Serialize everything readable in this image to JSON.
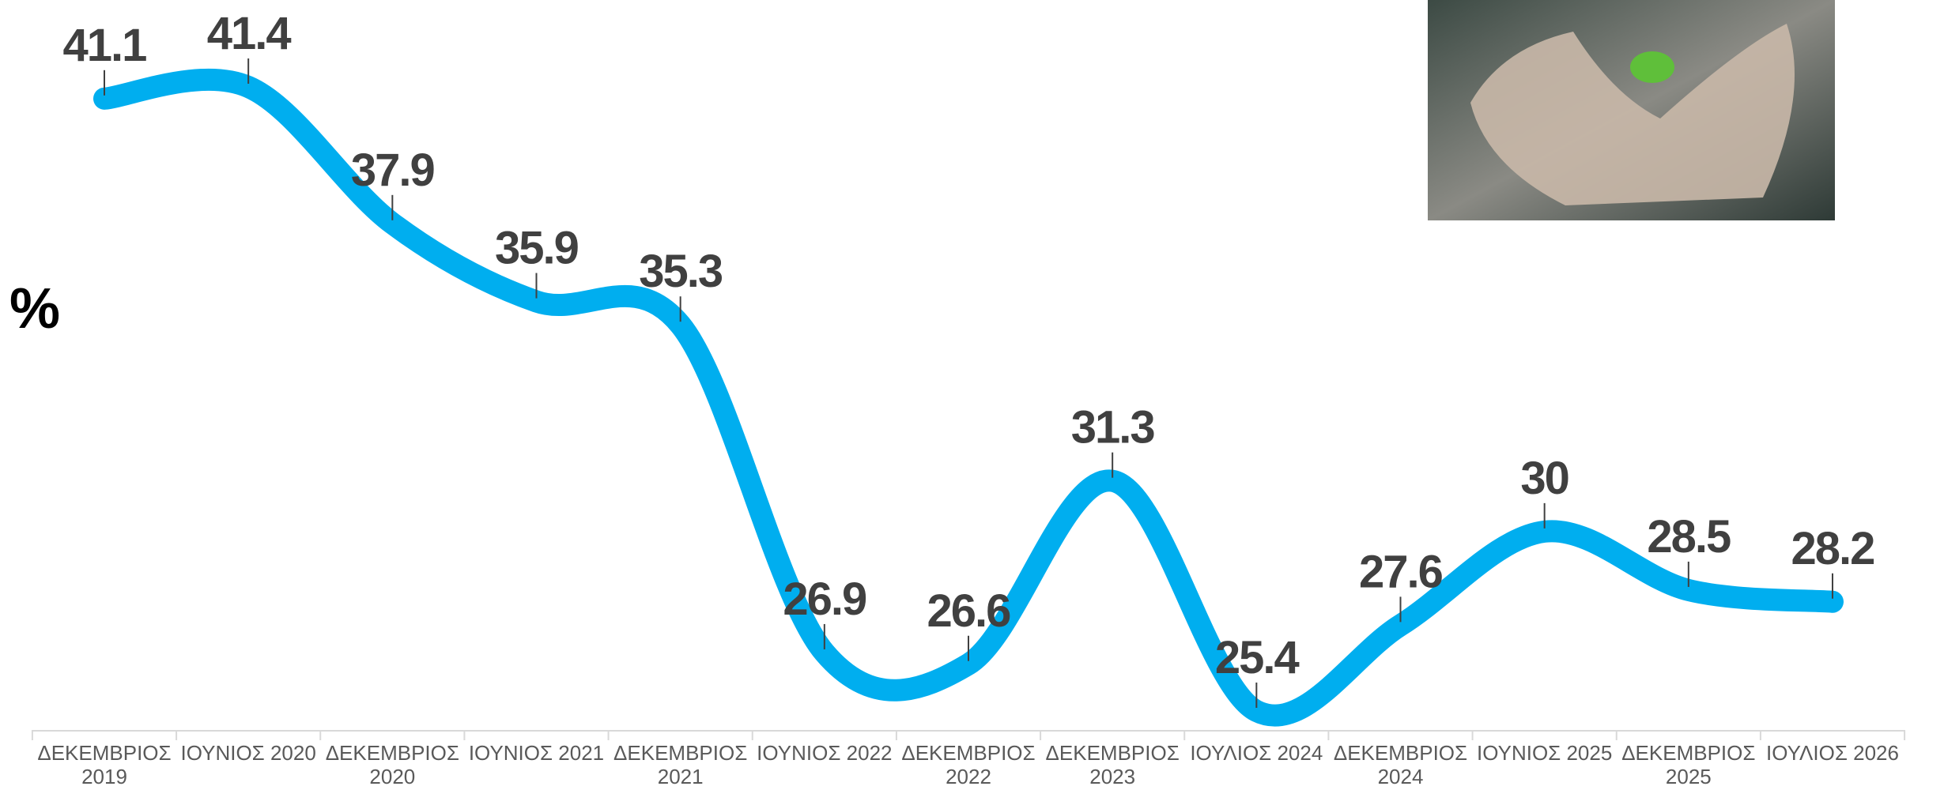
{
  "chart_data": {
    "type": "line",
    "title": "%",
    "categories": [
      "ΔΕΚΕΜΒΡΙΟΣ 2019",
      "ΙΟΥΝΙΟΣ 2020",
      "ΔΕΚΕΜΒΡΙΟΣ 2020",
      "ΙΟΥΝΙΟΣ 2021",
      "ΔΕΚΕΜΒΡΙΟΣ 2021",
      "ΙΟΥΝΙΟΣ 2022",
      "ΔΕΚΕΜΒΡΙΟΣ 2022",
      "ΔΕΚΕΜΒΡΙΟΣ 2023",
      "ΙΟΥΛΙΟΣ 2024",
      "ΔΕΚΕΜΒΡΙΟΣ 2024",
      "ΙΟΥΝΙΟΣ 2025",
      "ΔΕΚΕΜΒΡΙΟΣ 2025",
      "ΙΟΥΛΙΟΣ 2026"
    ],
    "values": [
      41.1,
      41.4,
      37.9,
      35.9,
      35.3,
      26.9,
      26.6,
      31.3,
      25.4,
      27.6,
      30,
      28.5,
      28.2
    ],
    "color": "#00aeef"
  }
}
